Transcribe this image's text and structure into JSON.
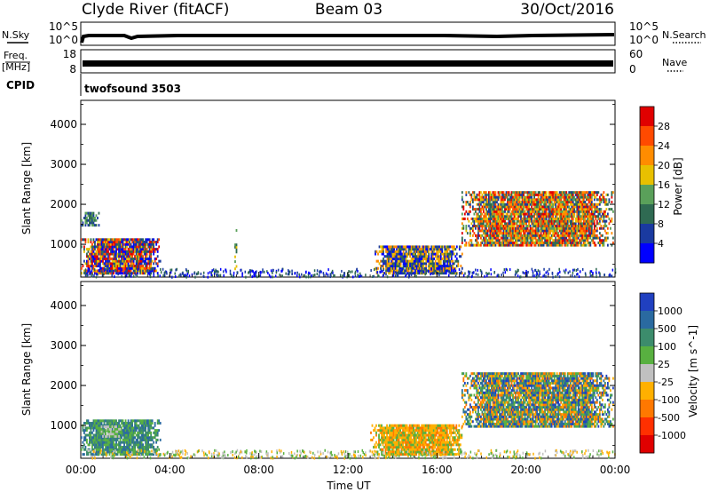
{
  "header": {
    "station": "Clyde River (fitACF)",
    "beam": "Beam 03",
    "date": "30/Oct/2016"
  },
  "top_panels": {
    "nsky_label": "N.Sky",
    "nsearch_label": "N.Search",
    "noise_ticks": [
      "10^5",
      "10^0"
    ],
    "freq_label": "Freq.",
    "freq_unit": "[MHz]",
    "freq_ticks": [
      "18",
      "8"
    ],
    "nave_label": "Nave",
    "nave_ticks": [
      "60",
      "0"
    ],
    "cpid_label": "CPID",
    "cpid_value": "twofsound 3503"
  },
  "chart_data": [
    {
      "type": "heatmap",
      "title": "",
      "ylabel": "Slant Range [km]",
      "xlabel": "",
      "xlim": [
        "00:00",
        "24:00"
      ],
      "ylim": [
        180,
        4600
      ],
      "yticks": [
        "1000",
        "2000",
        "3000",
        "4000"
      ],
      "colorbar": {
        "label": "Power [dB]",
        "ticks": [
          "4",
          "8",
          "12",
          "16",
          "20",
          "24",
          "28"
        ],
        "colors": [
          "#0000ff",
          "#1a3aa0",
          "#2f6a52",
          "#5aa05a",
          "#e8c000",
          "#ff8c00",
          "#ff4a00",
          "#e00000"
        ]
      },
      "features": [
        {
          "t_start": 0.0,
          "t_end": 3.6,
          "range_km": [
            250,
            1100
          ],
          "level_db": "4-28",
          "peak": "near-range strong echoes"
        },
        {
          "t_start": 0.0,
          "t_end": 0.8,
          "range_km": [
            1450,
            1800
          ],
          "level_db": "8-12"
        },
        {
          "t_start": 6.9,
          "t_end": 7.0,
          "range_km": [
            300,
            1400
          ],
          "level_db": "8-16"
        },
        {
          "t_start": 13.2,
          "t_end": 17.1,
          "range_km": [
            250,
            950
          ],
          "level_db": "4-24"
        },
        {
          "t_start": 17.1,
          "t_end": 23.9,
          "range_km": [
            950,
            2300
          ],
          "level_db": "8-28"
        }
      ]
    },
    {
      "type": "heatmap",
      "title": "",
      "ylabel": "Slant Range [km]",
      "xlabel": "Time UT",
      "xlim": [
        "00:00",
        "24:00"
      ],
      "ylim": [
        180,
        4600
      ],
      "xticks": [
        "00:00",
        "04:00",
        "08:00",
        "12:00",
        "16:00",
        "20:00",
        "00:00"
      ],
      "yticks": [
        "1000",
        "2000",
        "3000",
        "4000"
      ],
      "colorbar": {
        "label": "Velocity [m s^-1]",
        "ticks": [
          "1000",
          "500",
          "100",
          "25",
          "-25",
          "-100",
          "-500",
          "-1000"
        ],
        "colors": [
          "#2040c0",
          "#2a6aa0",
          "#3c8c6c",
          "#58b040",
          "#c0c0c0",
          "#ffb000",
          "#ff7800",
          "#ff3000",
          "#e00000"
        ]
      },
      "features": [
        {
          "t_start": 0.0,
          "t_end": 3.6,
          "range_km": [
            250,
            1100
          ],
          "velocity": "25 to 500"
        },
        {
          "t_start": 0.9,
          "t_end": 1.8,
          "range_km": [
            700,
            1000
          ],
          "velocity": "-25 to 25"
        },
        {
          "t_start": 13.0,
          "t_end": 17.1,
          "range_km": [
            250,
            1000
          ],
          "velocity": "-500 to -25"
        },
        {
          "t_start": 17.1,
          "t_end": 23.9,
          "range_km": [
            950,
            2300
          ],
          "velocity": "-500 to 500"
        }
      ]
    }
  ]
}
